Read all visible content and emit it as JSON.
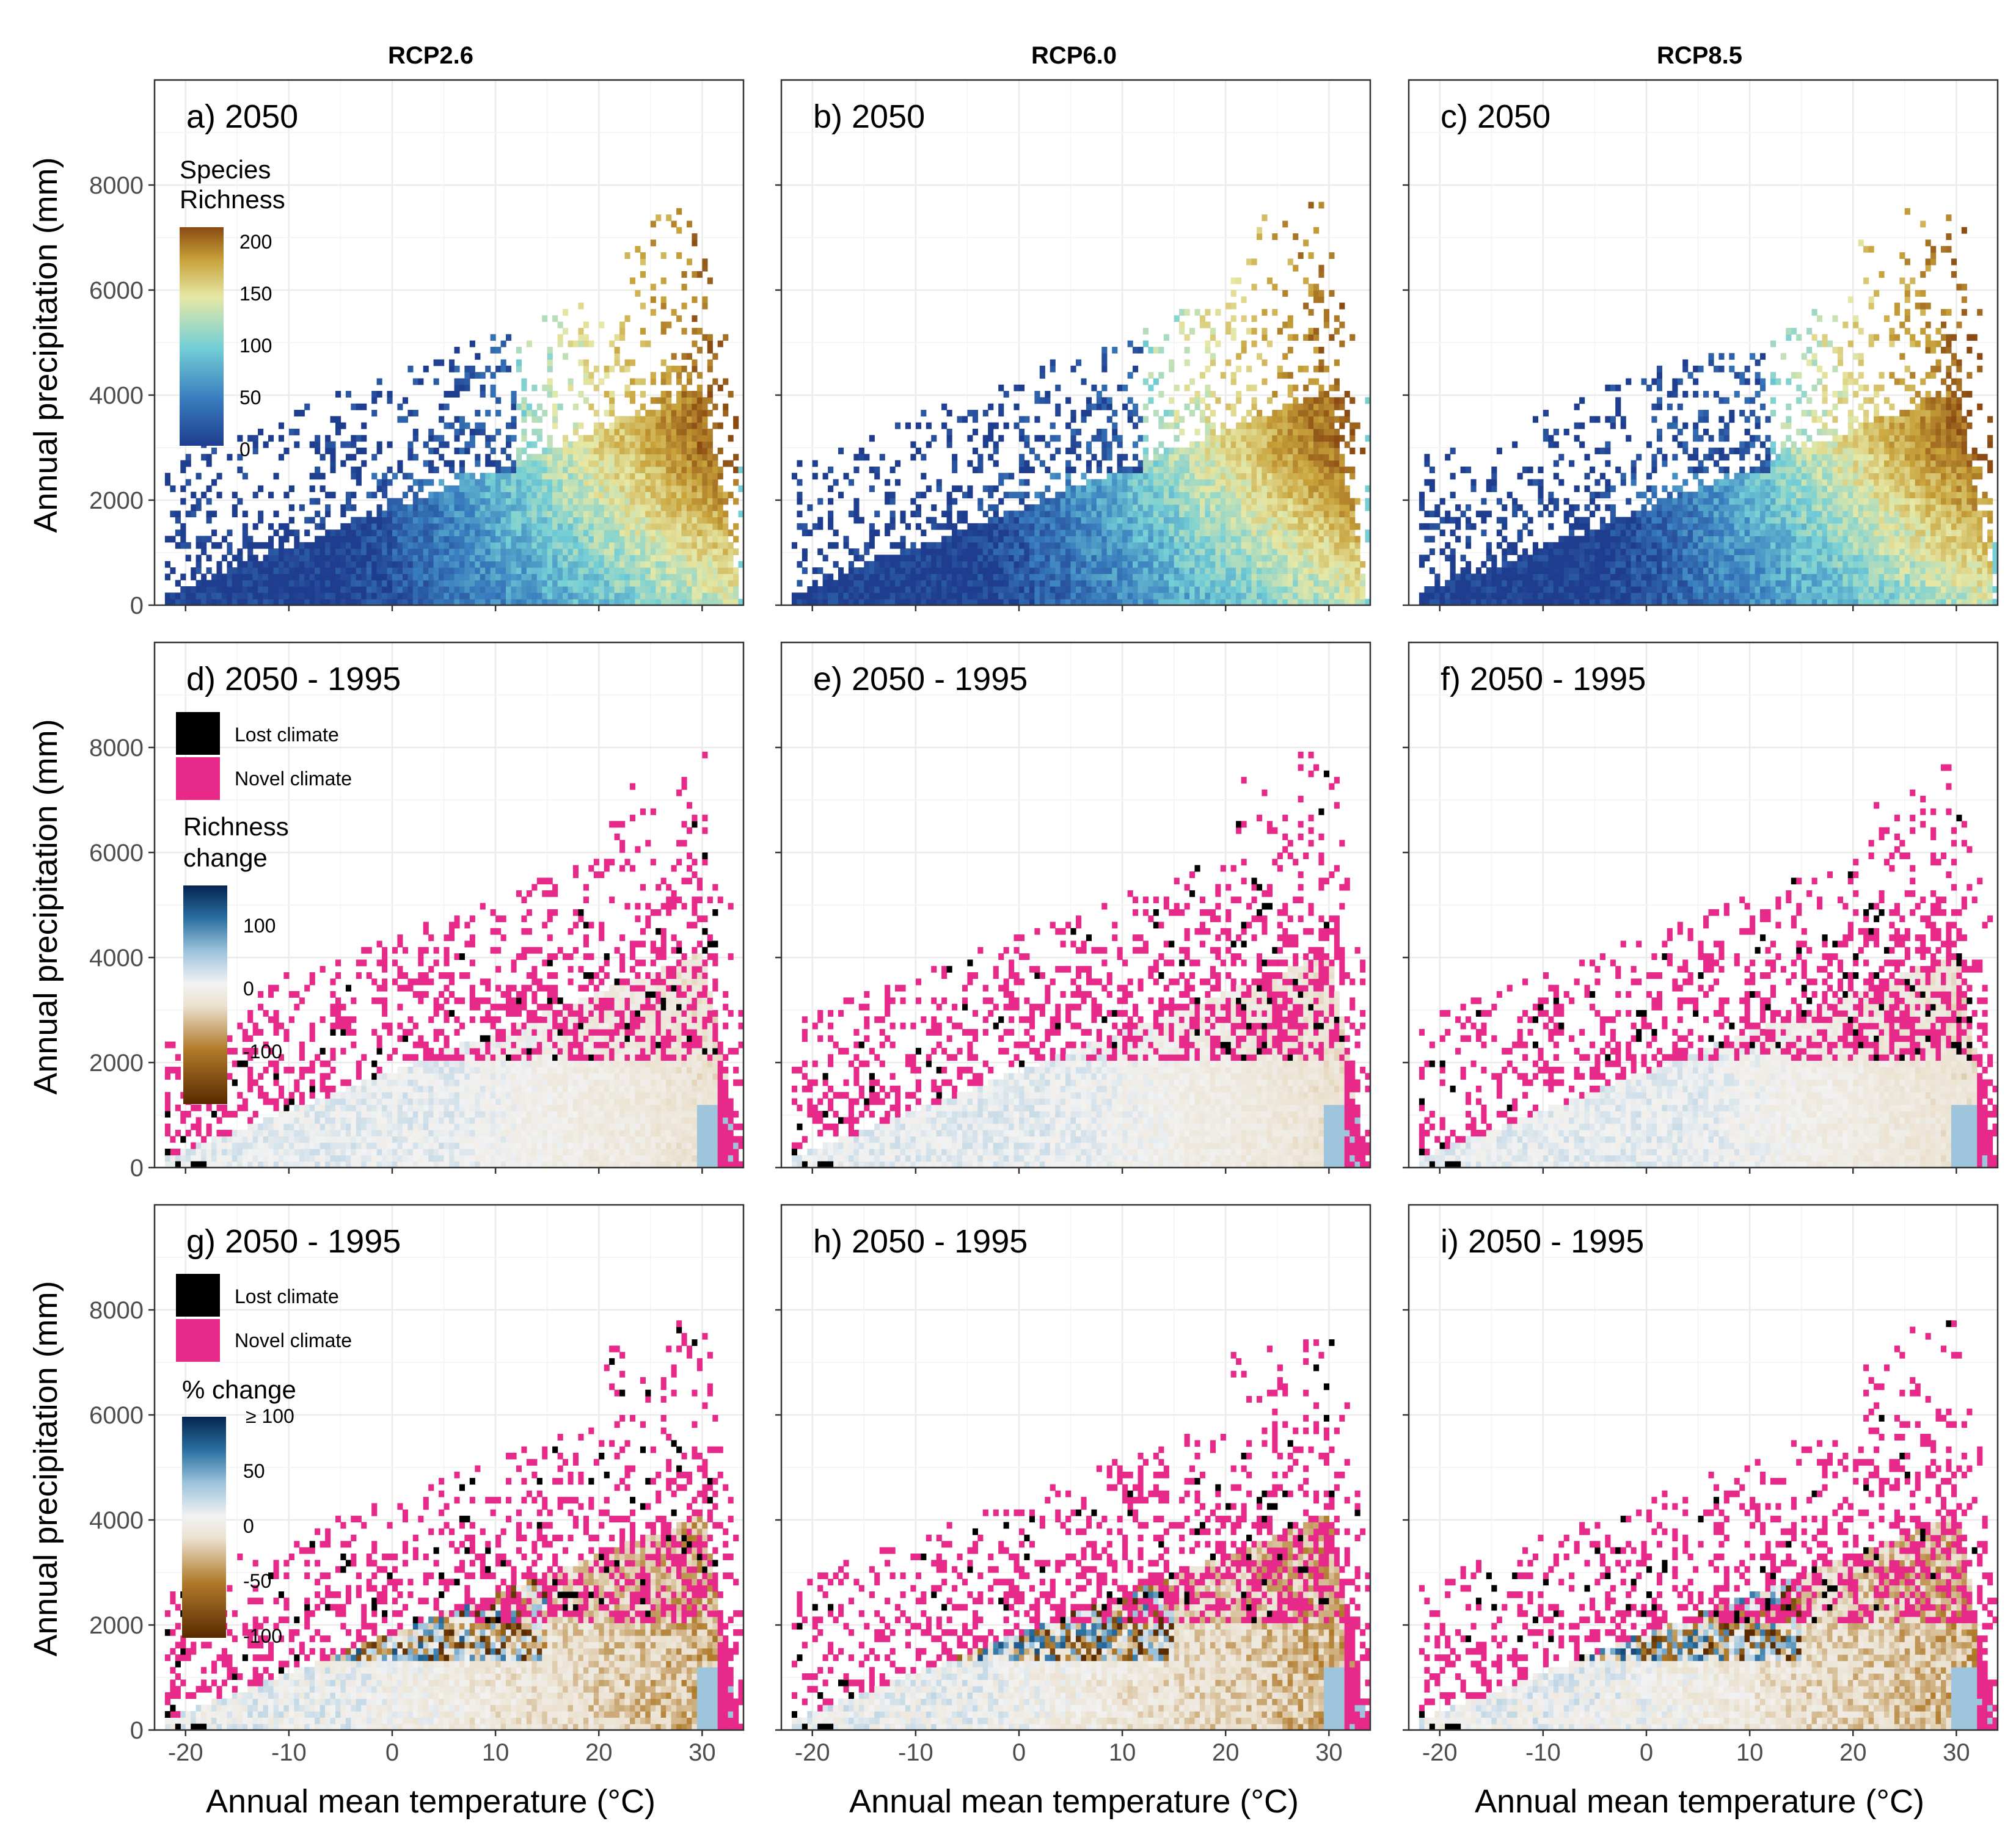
{
  "column_titles": [
    "RCP2.6",
    "RCP6.0",
    "RCP8.5"
  ],
  "x_axis_title": "Annual mean temperature (°C)",
  "y_axis_title": "Annual precipitation (mm)",
  "colors": {
    "lost_climate": "#000000",
    "novel_climate": "#e7298a",
    "richness_scale": [
      "#1f3d8f",
      "#3a7fbf",
      "#74cfd6",
      "#e6e8a6",
      "#c8a23a",
      "#8a4a12"
    ],
    "change_scale": [
      "#5a2a00",
      "#b07a2a",
      "#ebe1cf",
      "#f2f2f2",
      "#9cc3dc",
      "#2a6fa0",
      "#06244f"
    ]
  },
  "legends": {
    "richness": {
      "title_line1": "Species",
      "title_line2": "Richness",
      "ticks": [
        "200",
        "150",
        "100",
        "50",
        "0"
      ]
    },
    "categories": {
      "lost": "Lost climate",
      "novel": "Novel climate"
    },
    "richness_change": {
      "title_line1": "Richness",
      "title_line2": "change",
      "ticks": [
        "100",
        "0",
        "-100"
      ]
    },
    "pct_change": {
      "title": "% change",
      "ticks": [
        "≥ 100",
        "50",
        "0",
        "-50",
        "-100"
      ]
    }
  },
  "chart_data": [
    {
      "panel": "a",
      "label": "a) 2050",
      "type": "heatmap",
      "scenario": "RCP2.6",
      "fill": "Species Richness",
      "x_ticks": [
        "-20",
        "-10",
        "0",
        "10",
        "20",
        "30"
      ],
      "y_ticks": [
        "0",
        "2000",
        "4000",
        "6000",
        "8000"
      ],
      "xlim": [
        -23,
        34
      ],
      "ylim": [
        0,
        10000
      ]
    },
    {
      "panel": "b",
      "label": "b) 2050",
      "type": "heatmap",
      "scenario": "RCP6.0",
      "fill": "Species Richness",
      "x_ticks": [
        "-20",
        "-10",
        "0",
        "10",
        "20",
        "30"
      ],
      "y_ticks": [
        "0",
        "2000",
        "4000",
        "6000",
        "8000"
      ],
      "xlim": [
        -23,
        34
      ],
      "ylim": [
        0,
        10000
      ]
    },
    {
      "panel": "c",
      "label": "c) 2050",
      "type": "heatmap",
      "scenario": "RCP8.5",
      "fill": "Species Richness",
      "x_ticks": [
        "-20",
        "-10",
        "0",
        "10",
        "20",
        "30"
      ],
      "y_ticks": [
        "0",
        "2000",
        "4000",
        "6000",
        "8000"
      ],
      "xlim": [
        -23,
        34
      ],
      "ylim": [
        0,
        10000
      ]
    },
    {
      "panel": "d",
      "label": "d) 2050 - 1995",
      "type": "heatmap",
      "scenario": "RCP2.6",
      "fill": "Richness change",
      "x_ticks": [
        "-20",
        "-10",
        "0",
        "10",
        "20",
        "30"
      ],
      "y_ticks": [
        "0",
        "2000",
        "4000",
        "6000",
        "8000"
      ],
      "xlim": [
        -23,
        34
      ],
      "ylim": [
        0,
        10000
      ]
    },
    {
      "panel": "e",
      "label": "e) 2050 - 1995",
      "type": "heatmap",
      "scenario": "RCP6.0",
      "fill": "Richness change",
      "x_ticks": [
        "-20",
        "-10",
        "0",
        "10",
        "20",
        "30"
      ],
      "y_ticks": [
        "0",
        "2000",
        "4000",
        "6000",
        "8000"
      ],
      "xlim": [
        -23,
        34
      ],
      "ylim": [
        0,
        10000
      ]
    },
    {
      "panel": "f",
      "label": "f) 2050 - 1995",
      "type": "heatmap",
      "scenario": "RCP8.5",
      "fill": "Richness change",
      "x_ticks": [
        "-20",
        "-10",
        "0",
        "10",
        "20",
        "30"
      ],
      "y_ticks": [
        "0",
        "2000",
        "4000",
        "6000",
        "8000"
      ],
      "xlim": [
        -23,
        34
      ],
      "ylim": [
        0,
        10000
      ]
    },
    {
      "panel": "g",
      "label": "g) 2050 - 1995",
      "type": "heatmap",
      "scenario": "RCP2.6",
      "fill": "% change",
      "x_ticks": [
        "-20",
        "-10",
        "0",
        "10",
        "20",
        "30"
      ],
      "y_ticks": [
        "0",
        "2000",
        "4000",
        "6000",
        "8000"
      ],
      "xlim": [
        -23,
        34
      ],
      "ylim": [
        0,
        10000
      ]
    },
    {
      "panel": "h",
      "label": "h) 2050 - 1995",
      "type": "heatmap",
      "scenario": "RCP6.0",
      "fill": "% change",
      "x_ticks": [
        "-20",
        "-10",
        "0",
        "10",
        "20",
        "30"
      ],
      "y_ticks": [
        "0",
        "2000",
        "4000",
        "6000",
        "8000"
      ],
      "xlim": [
        -23,
        34
      ],
      "ylim": [
        0,
        10000
      ]
    },
    {
      "panel": "i",
      "label": "i) 2050 - 1995",
      "type": "heatmap",
      "scenario": "RCP8.5",
      "fill": "% change",
      "x_ticks": [
        "-20",
        "-10",
        "0",
        "10",
        "20",
        "30"
      ],
      "y_ticks": [
        "0",
        "2000",
        "4000",
        "6000",
        "8000"
      ],
      "xlim": [
        -23,
        34
      ],
      "ylim": [
        0,
        10000
      ]
    }
  ]
}
